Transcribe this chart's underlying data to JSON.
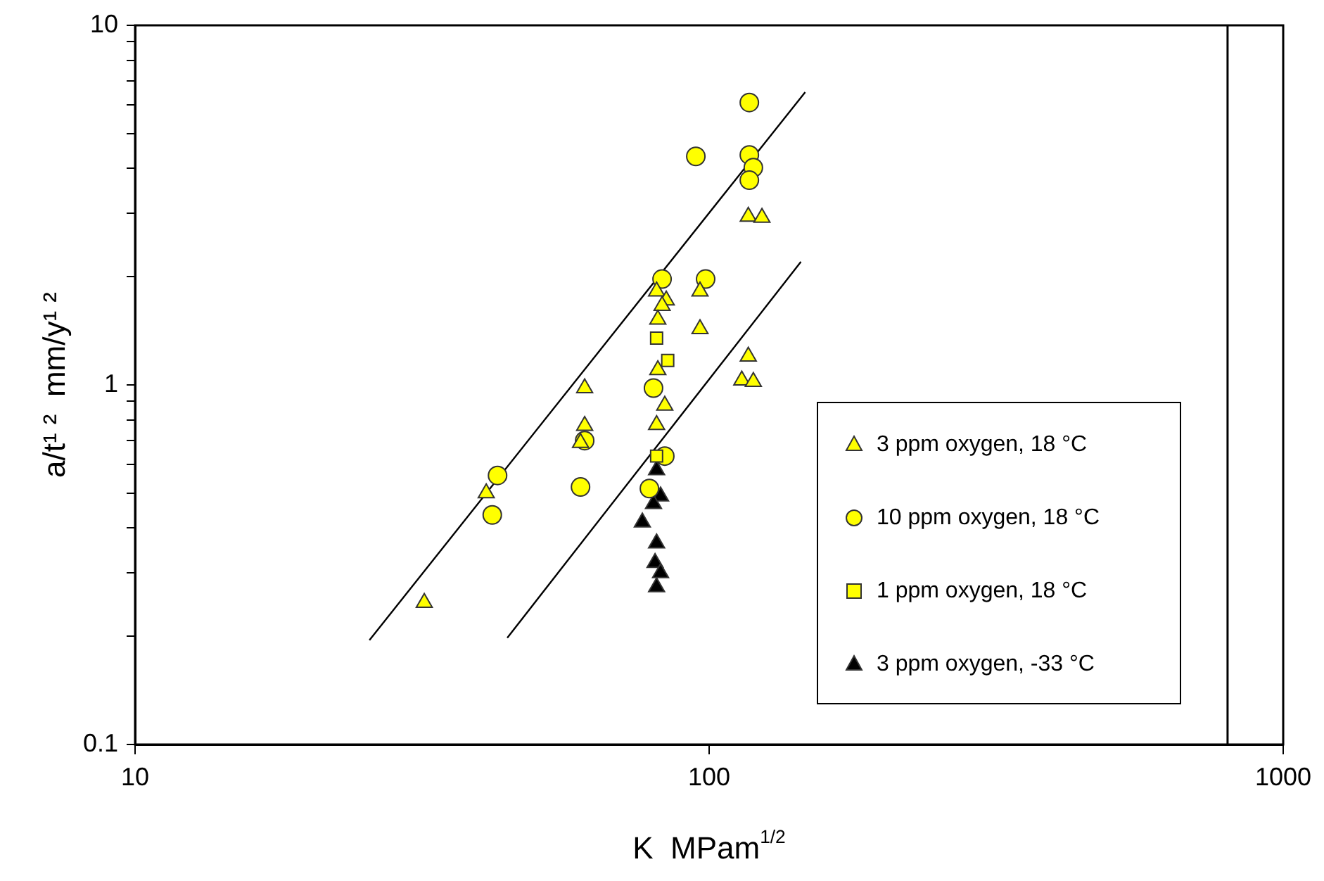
{
  "chart_data": {
    "type": "scatter",
    "xlabel": "K  MPam$^{1/2}$",
    "ylabel": "a/t¹ ²  mm/y¹ ²",
    "log": "xy",
    "xlim": [
      10,
      1000
    ],
    "xticks": [
      10,
      100,
      1000
    ],
    "ylim": [
      0.1,
      10
    ],
    "yticks": [
      0.1,
      {
        "value": 0.2,
        "label": null
      },
      {
        "value": 0.3,
        "label": null
      },
      {
        "value": 0.4,
        "label": null
      },
      {
        "value": 0.5,
        "label": null
      },
      {
        "value": 0.6,
        "label": null
      },
      {
        "value": 0.7,
        "label": null
      },
      {
        "value": 0.8,
        "label": null
      },
      {
        "value": 0.9,
        "label": null
      },
      1,
      {
        "value": 2,
        "label": null
      },
      {
        "value": 3,
        "label": null
      },
      {
        "value": 4,
        "label": null
      },
      {
        "value": 5,
        "label": null
      },
      {
        "value": 6,
        "label": null
      },
      {
        "value": 7,
        "label": null
      },
      {
        "value": 8,
        "label": null
      },
      {
        "value": 9,
        "label": null
      },
      10
    ],
    "grid": false,
    "legend": "bottom right",
    "ref_lines": [
      {
        "axis": "x",
        "value": 800,
        "color": "#000000"
      }
    ],
    "series": [
      {
        "name": "3 ppm oxygen, 18 °C",
        "color": "#ffff00",
        "marker": "triangle",
        "x": [
          31.9,
          40.9,
          60.7,
          60.7,
          59.7,
          81,
          84.2,
          82.8,
          81.4,
          81.4,
          83.7,
          81,
          96.4,
          96.4,
          117,
          123.6,
          117,
          114,
          119.4
        ],
        "values": [
          0.248,
          0.5,
          0.98,
          0.77,
          0.69,
          1.82,
          1.72,
          1.66,
          1.52,
          1.1,
          0.877,
          0.774,
          1.82,
          1.43,
          2.94,
          2.92,
          1.2,
          1.03,
          1.02
        ]
      },
      {
        "name": "10 ppm oxygen, 18 °C",
        "color": "#ffff00",
        "marker": "circle",
        "x": [
          42.8,
          41.9,
          59.7,
          60.7,
          80,
          82.8,
          98.6,
          94.8,
          117.5,
          117.5,
          119.4,
          117.5,
          78.7,
          83.7
        ],
        "values": [
          0.56,
          0.435,
          0.52,
          0.7,
          0.98,
          1.97,
          1.97,
          4.32,
          6.1,
          4.36,
          4.02,
          3.71,
          0.515,
          0.634
        ]
      },
      {
        "name": "1 ppm oxygen, 18 °C",
        "color": "#ffff00",
        "marker": "square",
        "x": [
          81,
          84.7,
          81
        ],
        "values": [
          1.35,
          1.17,
          0.634
        ]
      },
      {
        "name": "3 ppm oxygen, -33 °C",
        "color": "#000000",
        "marker": "triangle",
        "x": [
          81,
          82.3,
          80,
          76.5,
          81,
          80.5,
          82.3,
          81
        ],
        "values": [
          0.58,
          0.49,
          0.467,
          0.415,
          0.363,
          0.32,
          0.3,
          0.274
        ]
      },
      {
        "type": "line",
        "color": "#000000",
        "marker": "none",
        "x": [
          25.6,
          147
        ],
        "values": [
          0.195,
          6.52
        ]
      },
      {
        "type": "line",
        "color": "#000000",
        "marker": "none",
        "x": [
          44.5,
          144.5
        ],
        "values": [
          0.198,
          2.2
        ]
      }
    ]
  }
}
